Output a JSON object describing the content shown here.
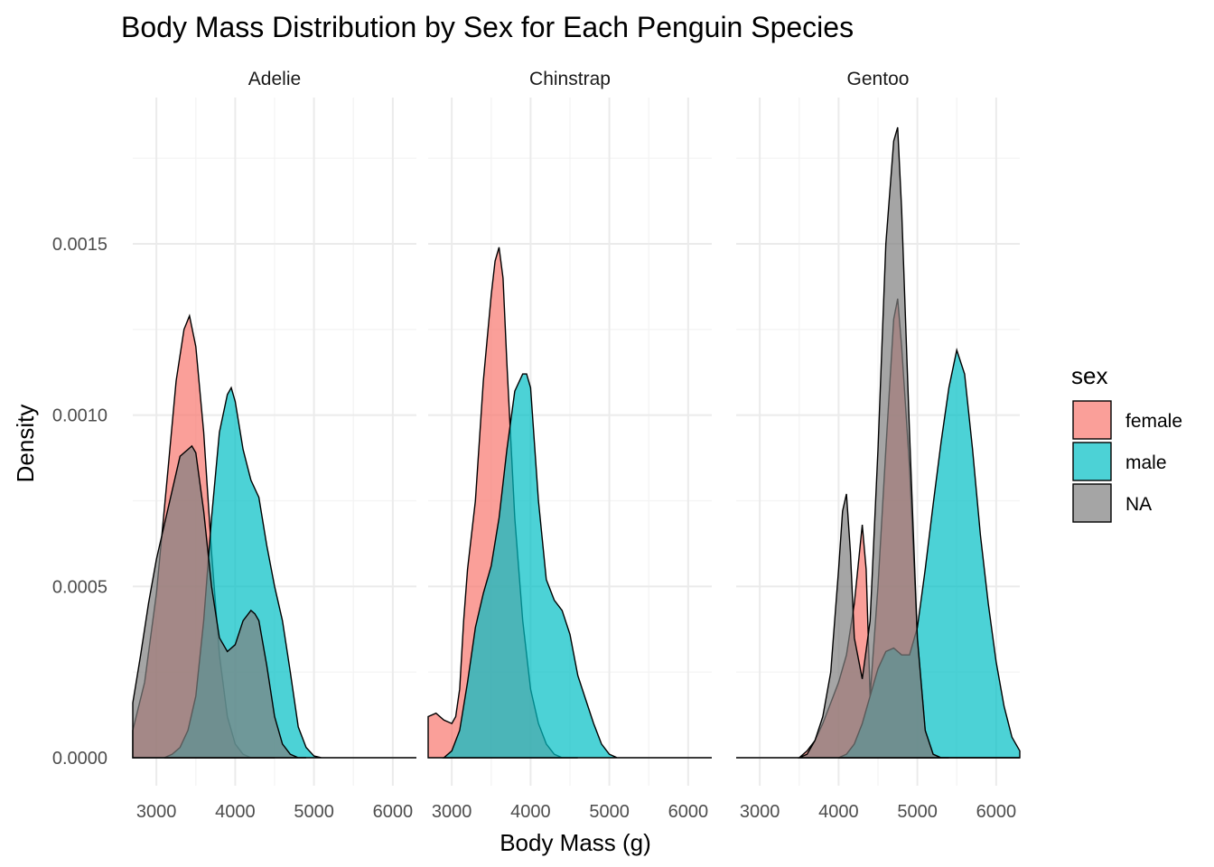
{
  "chart_data": {
    "type": "area",
    "title": "Body Mass Distribution by Sex for Each Penguin Species",
    "xlabel": "Body Mass (g)",
    "ylabel": "Density",
    "xlim": [
      2700,
      6300
    ],
    "ylim": [
      0,
      0.0018
    ],
    "x_ticks": [
      "3000",
      "4000",
      "5000",
      "6000"
    ],
    "x_tick_values": [
      3000,
      4000,
      5000,
      6000
    ],
    "y_ticks": [
      "0.0000",
      "0.0005",
      "0.0010",
      "0.0015"
    ],
    "y_tick_values": [
      0,
      0.0005,
      0.001,
      0.0015
    ],
    "grid": true,
    "legend": {
      "title": "sex",
      "position": "right",
      "entries": [
        {
          "label": "female",
          "color": "#F8766D"
        },
        {
          "label": "male",
          "color": "#00BFC4"
        },
        {
          "label": "NA",
          "color": "#7F7F7F"
        }
      ]
    },
    "panels": [
      {
        "name": "Adelie",
        "series": [
          {
            "name": "female",
            "x": [
              2700,
              2850,
              3000,
              3150,
              3250,
              3350,
              3420,
              3500,
              3600,
              3700,
              3800,
              3900,
              4000,
              4100,
              4200,
              4300,
              4400,
              4500
            ],
            "y": [
              8e-05,
              0.00022,
              0.00048,
              0.00085,
              0.0011,
              0.00125,
              0.00129,
              0.0012,
              0.00095,
              0.0006,
              0.0003,
              0.00012,
              4e-05,
              1e-05,
              0,
              0,
              0,
              0
            ]
          },
          {
            "name": "male",
            "x": [
              3100,
              3200,
              3300,
              3400,
              3500,
              3600,
              3700,
              3800,
              3900,
              3950,
              4000,
              4100,
              4200,
              4300,
              4400,
              4500,
              4600,
              4700,
              4800,
              4900,
              5000,
              5100,
              5200,
              5300,
              5400,
              5500,
              5600,
              5700,
              5800,
              5900,
              6000,
              6100,
              6200,
              6300
            ],
            "y": [
              0,
              1e-05,
              3e-05,
              8e-05,
              0.00018,
              0.0004,
              0.0007,
              0.00095,
              0.00106,
              0.00108,
              0.00104,
              0.0009,
              0.00081,
              0.00076,
              0.00062,
              0.0005,
              0.0004,
              0.00025,
              9e-05,
              3e-05,
              5e-06,
              0,
              0,
              0,
              0,
              0,
              0,
              0,
              0,
              0,
              0,
              0,
              0,
              0
            ]
          },
          {
            "name": "NA",
            "x": [
              2700,
              2800,
              2900,
              3000,
              3100,
              3200,
              3300,
              3400,
              3450,
              3500,
              3600,
              3700,
              3800,
              3900,
              4000,
              4100,
              4200,
              4250,
              4300,
              4400,
              4500,
              4600,
              4700,
              4800,
              4900
            ],
            "y": [
              0.00016,
              0.0003,
              0.00045,
              0.00058,
              0.00068,
              0.00078,
              0.00088,
              0.0009,
              0.00091,
              0.00089,
              0.00072,
              0.0005,
              0.00035,
              0.00031,
              0.00033,
              0.0004,
              0.00043,
              0.00042,
              0.0004,
              0.00027,
              0.00012,
              4e-05,
              1e-05,
              0,
              0
            ]
          }
        ]
      },
      {
        "name": "Chinstrap",
        "series": [
          {
            "name": "female",
            "x": [
              2700,
              2800,
              2900,
              3000,
              3050,
              3100,
              3150,
              3200,
              3300,
              3400,
              3500,
              3550,
              3600,
              3650,
              3700,
              3800,
              3900,
              4000,
              4100,
              4200,
              4300,
              4400,
              4500,
              4600
            ],
            "y": [
              0.00012,
              0.00013,
              0.00011,
              0.0001,
              0.00012,
              0.0002,
              0.0004,
              0.00055,
              0.00075,
              0.0011,
              0.00135,
              0.00145,
              0.00149,
              0.0014,
              0.00115,
              0.0007,
              0.0004,
              0.0002,
              0.0001,
              4e-05,
              1e-05,
              0,
              0,
              0
            ]
          },
          {
            "name": "male",
            "x": [
              2900,
              3000,
              3100,
              3200,
              3300,
              3400,
              3500,
              3600,
              3700,
              3800,
              3900,
              3950,
              4000,
              4100,
              4200,
              4300,
              4400,
              4500,
              4600,
              4700,
              4800,
              4900,
              5000,
              5100,
              5200,
              5300,
              5400,
              5500,
              5600,
              5700,
              5800,
              5900,
              6000,
              6100,
              6200,
              6300
            ],
            "y": [
              0,
              2e-05,
              8e-05,
              0.00022,
              0.00038,
              0.00048,
              0.00056,
              0.0007,
              0.0009,
              0.00107,
              0.00112,
              0.00112,
              0.00108,
              0.00075,
              0.00052,
              0.00046,
              0.00043,
              0.00036,
              0.00024,
              0.00017,
              0.0001,
              4e-05,
              1e-05,
              0,
              0,
              0,
              0,
              0,
              0,
              0,
              0,
              0,
              0,
              0,
              0,
              0
            ]
          }
        ]
      },
      {
        "name": "Gentoo",
        "series": [
          {
            "name": "female",
            "x": [
              3500,
              3600,
              3700,
              3800,
              3900,
              4000,
              4100,
              4200,
              4300,
              4350,
              4400,
              4500,
              4600,
              4700,
              4750,
              4800,
              4900,
              5000,
              5100,
              5200,
              5300,
              5400
            ],
            "y": [
              0,
              2e-05,
              5e-05,
              0.0001,
              0.00016,
              0.00022,
              0.0003,
              0.00045,
              0.00068,
              0.00055,
              0.00018,
              0.0005,
              0.0009,
              0.00128,
              0.00134,
              0.0012,
              0.00085,
              0.00035,
              8e-05,
              1e-05,
              0,
              0
            ]
          },
          {
            "name": "male",
            "x": [
              4000,
              4100,
              4200,
              4300,
              4400,
              4500,
              4600,
              4700,
              4800,
              4900,
              5000,
              5100,
              5200,
              5300,
              5400,
              5500,
              5600,
              5700,
              5800,
              5900,
              6000,
              6100,
              6200,
              6300
            ],
            "y": [
              0,
              1e-05,
              4e-05,
              0.0001,
              0.00018,
              0.00026,
              0.00031,
              0.00032,
              0.0003,
              0.0003,
              0.00038,
              0.00055,
              0.00074,
              0.00092,
              0.00108,
              0.00119,
              0.00112,
              0.0009,
              0.00065,
              0.00045,
              0.00028,
              0.00015,
              6e-05,
              2e-05
            ]
          },
          {
            "name": "NA",
            "x": [
              2700,
              3500,
              3600,
              3700,
              3800,
              3900,
              4000,
              4050,
              4100,
              4150,
              4200,
              4300,
              4400,
              4500,
              4600,
              4700,
              4750,
              4800,
              4900,
              5000,
              5100,
              5200,
              5300,
              5400,
              5500,
              5600,
              5700,
              5800,
              5900,
              6000,
              6100,
              6200,
              6300
            ],
            "y": [
              0,
              0,
              1e-05,
              5e-05,
              0.00012,
              0.00025,
              0.00055,
              0.00072,
              0.00077,
              0.0006,
              0.00035,
              0.00023,
              0.0004,
              0.0009,
              0.0015,
              0.0018,
              0.00184,
              0.0016,
              0.00095,
              0.00035,
              8e-05,
              1e-05,
              0,
              0,
              0,
              0,
              0,
              0,
              0,
              0,
              0,
              0,
              0
            ]
          }
        ]
      }
    ]
  }
}
